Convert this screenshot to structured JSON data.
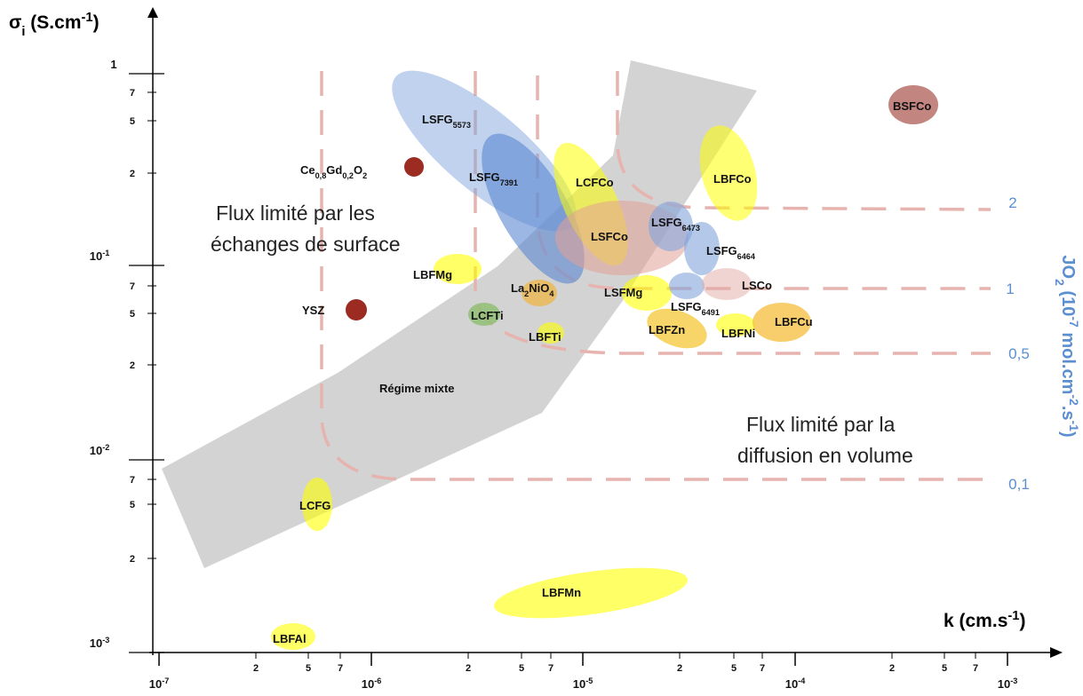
{
  "axes": {
    "y_title": [
      "σ",
      "i",
      " (S.cm",
      "-1",
      ")"
    ],
    "x_title": [
      "k (cm.s",
      "-1",
      ")"
    ],
    "y2_title": [
      "JO",
      "2",
      " (10",
      "-7",
      " mol.cm",
      "-2",
      ".s",
      "-1",
      ")"
    ],
    "x_decades": [
      [
        "10",
        "-7"
      ],
      [
        "10",
        "-6"
      ],
      [
        "10",
        "-5"
      ],
      [
        "10",
        "-4"
      ],
      [
        "10",
        "-3"
      ]
    ],
    "x_minor": [
      "2",
      "5",
      "7",
      "2",
      "5",
      "7",
      "2",
      "5",
      "7",
      "2",
      "5",
      "7"
    ],
    "y_decades": [
      [
        "1"
      ],
      [
        "10",
        "-1"
      ],
      [
        "10",
        "-2"
      ],
      [
        "10",
        "-3"
      ]
    ],
    "y_minor": [
      "7",
      "5",
      "2",
      "7",
      "5",
      "2",
      "7",
      "5",
      "2"
    ]
  },
  "flux_levels": [
    "2",
    "1",
    "0,5",
    "0,1"
  ],
  "regions": [
    "Flux limité par les",
    "échanges de surface",
    "Flux limité par la",
    "diffusion en volume",
    "Régime mixte"
  ],
  "materials": [
    [
      "LSFG",
      "5573"
    ],
    [
      "LSFG",
      "7391"
    ],
    [
      "Ce",
      "0,8",
      "Gd",
      "0,2",
      "O",
      "2"
    ],
    [
      "LCFCo"
    ],
    [
      "LSFCo"
    ],
    [
      "LSFG",
      "6473"
    ],
    [
      "LSFG",
      "6464"
    ],
    [
      "LBFCo"
    ],
    [
      "BSFCo"
    ],
    [
      "LBFMg"
    ],
    [
      "La",
      "2",
      "NiO",
      "4"
    ],
    [
      "LCFTi"
    ],
    [
      "LBFTi"
    ],
    [
      "LSFMg"
    ],
    [
      "LSFG",
      "6491"
    ],
    [
      "LSCo"
    ],
    [
      "LBFZn"
    ],
    [
      "LBFNi"
    ],
    [
      "LBFCu"
    ],
    [
      "YSZ"
    ],
    [
      "LCFG"
    ],
    [
      "LBFMn"
    ],
    [
      "LBFAl"
    ]
  ]
}
